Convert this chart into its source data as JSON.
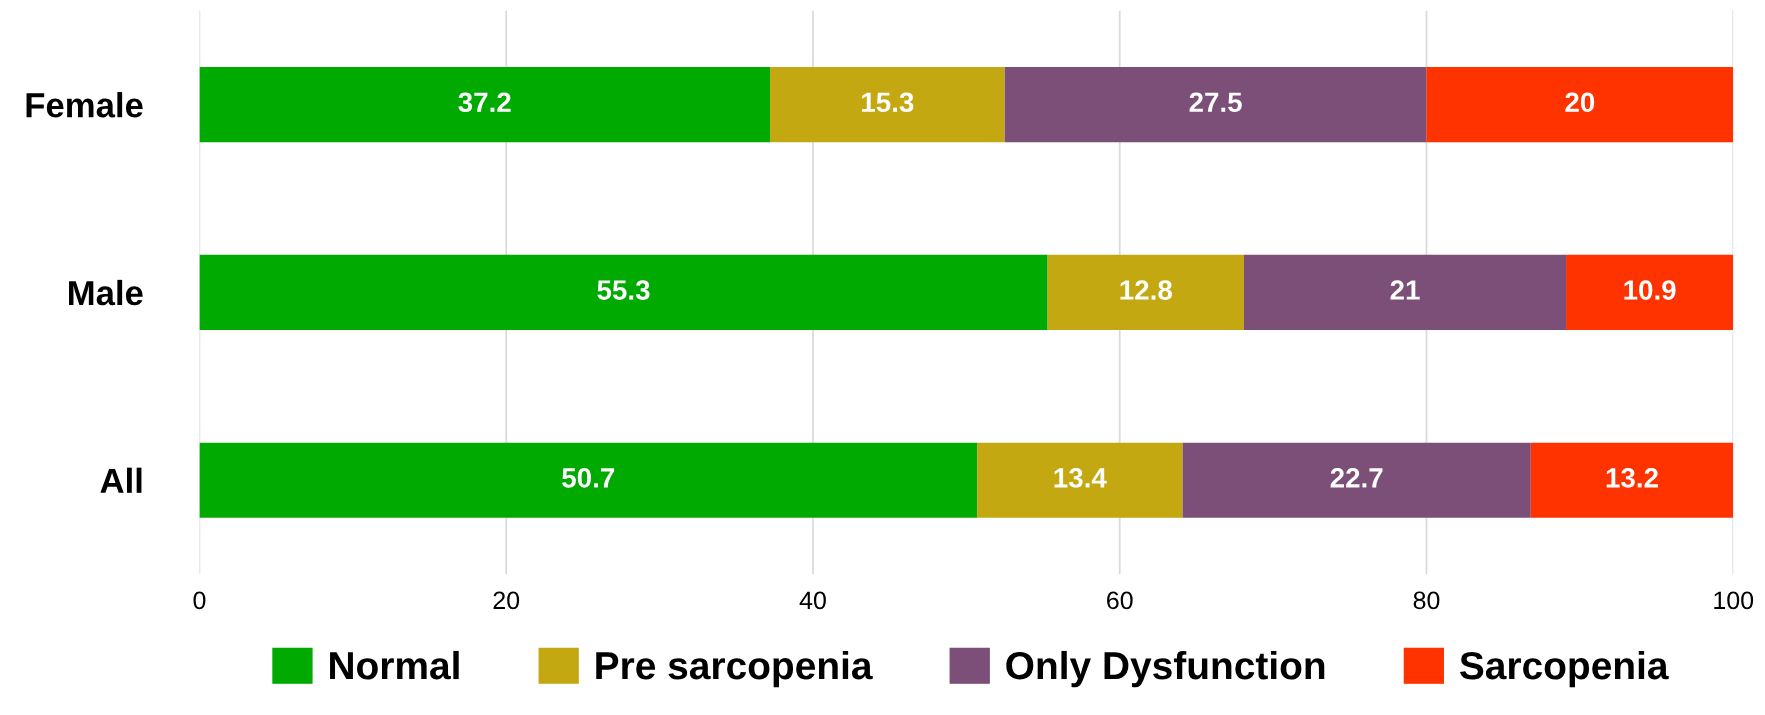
{
  "chart_data": {
    "type": "bar",
    "orientation": "horizontal",
    "stacked": true,
    "categories": [
      "Female",
      "Male",
      "All"
    ],
    "series": [
      {
        "name": "Normal",
        "color": "#00aa00",
        "values": [
          37.2,
          55.3,
          50.7
        ]
      },
      {
        "name": "Pre sarcopenia",
        "color": "#c4a812",
        "values": [
          15.3,
          12.8,
          13.4
        ]
      },
      {
        "name": "Only Dysfunction",
        "color": "#7b4f78",
        "values": [
          27.5,
          21,
          22.7
        ]
      },
      {
        "name": "Sarcopenia",
        "color": "#ff3300",
        "values": [
          20,
          10.9,
          13.2
        ]
      }
    ],
    "xlim": [
      0,
      100
    ],
    "xticks": [
      0,
      20,
      40,
      60,
      80,
      100
    ],
    "grid": "x",
    "legend": "bottom",
    "data_labels": true
  }
}
